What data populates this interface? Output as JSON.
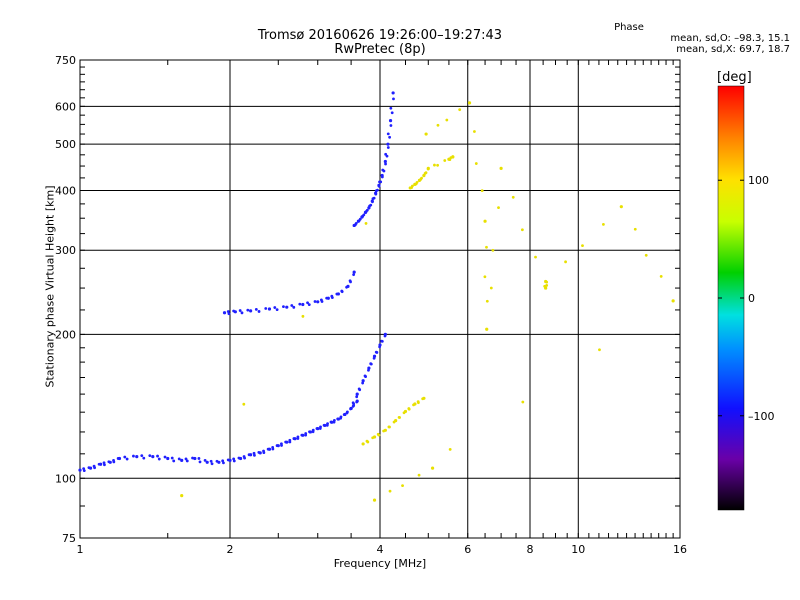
{
  "title": "Tromsø 20160626 19:26:00–19:27:43",
  "subtitle": "RwPretec (8p)",
  "phase_info": {
    "heading": "Phase",
    "line_o": "mean, sd,O: –98.3, 15.1",
    "line_x": "mean, sd,X: 69.7, 18.7"
  },
  "chart_data": {
    "type": "scatter",
    "xlabel": "Frequency [MHz]",
    "ylabel": "Stationary phase Virtual Height [km]",
    "xscale": "log",
    "yscale": "log",
    "xlim": [
      1,
      16
    ],
    "ylim": [
      75,
      750
    ],
    "x_ticks": [
      1,
      2,
      4,
      6,
      8,
      10,
      16
    ],
    "x_tick_labels": [
      "1",
      "2",
      "4",
      "6",
      "8",
      "10",
      "16"
    ],
    "y_ticks": [
      75,
      100,
      200,
      300,
      400,
      500,
      600,
      750
    ],
    "y_tick_labels": [
      "75",
      "100",
      "200",
      "300",
      "400",
      "500",
      "600",
      "750"
    ],
    "grid": true,
    "colorbar": {
      "label": "[deg]",
      "range": [
        -180,
        180
      ],
      "ticks": [
        100,
        0,
        -100
      ],
      "tick_labels": [
        "100",
        "0",
        "–100"
      ],
      "colormap": "rainbow"
    },
    "series": [
      {
        "points_x": [
          1.0,
          1.05,
          1.1,
          1.15,
          1.2,
          1.3,
          1.4,
          1.5,
          1.6,
          1.7,
          1.8,
          1.9,
          2.0,
          2.1,
          2.2,
          2.3,
          2.4,
          2.5,
          2.6,
          2.7,
          2.8,
          2.9,
          3.0,
          3.1,
          3.2,
          3.3,
          3.4,
          3.5,
          3.6
        ],
        "points_y": [
          104,
          105,
          107,
          108,
          110,
          111,
          111,
          110,
          109,
          110,
          108,
          108,
          109,
          110,
          112,
          113,
          115,
          117,
          119,
          121,
          123,
          125,
          127,
          129,
          131,
          133,
          136,
          140,
          145
        ],
        "phase": -115
      },
      {
        "points_x": [
          1.95,
          2.05,
          2.2,
          2.4,
          2.6,
          2.8,
          3.0,
          3.15,
          3.3,
          3.45,
          3.55
        ],
        "points_y": [
          222,
          223,
          224,
          226,
          228,
          231,
          234,
          238,
          243,
          252,
          270
        ],
        "phase": -110
      },
      {
        "points_x": [
          3.55,
          3.62,
          3.68,
          3.74,
          3.8,
          3.86,
          3.92,
          3.98,
          4.04,
          4.1,
          4.15,
          4.2,
          4.25
        ],
        "points_y": [
          338,
          345,
          352,
          360,
          368,
          380,
          395,
          410,
          430,
          460,
          500,
          560,
          640
        ],
        "phase": -105
      },
      {
        "points_x": [
          3.5,
          3.6,
          3.7,
          3.8,
          3.9,
          4.0,
          4.1
        ],
        "points_y": [
          140,
          150,
          160,
          170,
          180,
          190,
          200
        ],
        "phase": -110
      },
      {
        "points_x": [
          3.7,
          3.9,
          4.1,
          4.3,
          4.5,
          4.7,
          4.9
        ],
        "points_y": [
          118,
          122,
          126,
          132,
          138,
          143,
          147
        ],
        "phase": 95
      },
      {
        "points_x": [
          4.6,
          4.7,
          4.8,
          4.9,
          5.0,
          5.5,
          5.6
        ],
        "points_y": [
          405,
          412,
          420,
          430,
          445,
          465,
          470
        ],
        "phase": 95
      },
      {
        "points_x": [
          1.6,
          4.95,
          6.05,
          6.5,
          6.55,
          7.0,
          8.6,
          8.6,
          12.2,
          15.5,
          3.9,
          5.1
        ],
        "points_y": [
          92,
          525,
          610,
          345,
          205,
          445,
          250,
          258,
          370,
          235,
          90,
          105
        ],
        "phase": 90
      }
    ]
  }
}
